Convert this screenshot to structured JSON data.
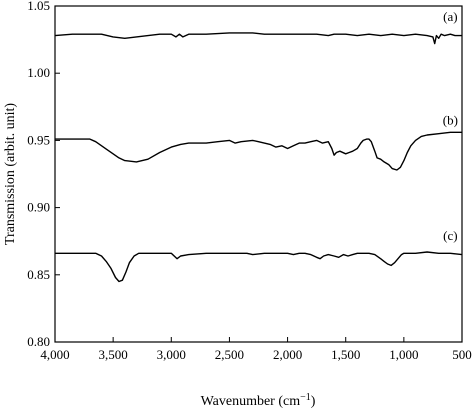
{
  "chart_data": {
    "type": "line",
    "xlabel_base": "Wavenumber (cm",
    "xlabel_sup": "−1",
    "xlabel_end": ")",
    "ylabel": "Transmission (arbit. unit)",
    "xlim": [
      4000,
      500
    ],
    "ylim": [
      0.8,
      1.05
    ],
    "x_ticks": [
      4000,
      3500,
      3000,
      2500,
      2000,
      1500,
      1000,
      500
    ],
    "x_tick_labels": [
      "4,000",
      "3,500",
      "3,000",
      "2,500",
      "2,000",
      "1,500",
      "1,000",
      "500"
    ],
    "y_ticks": [
      0.8,
      0.85,
      0.9,
      0.95,
      1.0,
      1.05
    ],
    "y_tick_labels": [
      "0.80",
      "0.85",
      "0.90",
      "0.95",
      "1.00",
      "1.05"
    ],
    "series": [
      {
        "label": "(a)",
        "label_at": [
          600,
          1.039
        ],
        "points": [
          [
            4000,
            1.028
          ],
          [
            3850,
            1.029
          ],
          [
            3700,
            1.029
          ],
          [
            3600,
            1.029
          ],
          [
            3500,
            1.027
          ],
          [
            3400,
            1.026
          ],
          [
            3300,
            1.027
          ],
          [
            3200,
            1.028
          ],
          [
            3100,
            1.029
          ],
          [
            3000,
            1.029
          ],
          [
            2960,
            1.027
          ],
          [
            2930,
            1.029
          ],
          [
            2900,
            1.027
          ],
          [
            2850,
            1.029
          ],
          [
            2700,
            1.029
          ],
          [
            2500,
            1.03
          ],
          [
            2300,
            1.03
          ],
          [
            2200,
            1.029
          ],
          [
            2100,
            1.029
          ],
          [
            2000,
            1.029
          ],
          [
            1900,
            1.029
          ],
          [
            1750,
            1.029
          ],
          [
            1650,
            1.028
          ],
          [
            1600,
            1.029
          ],
          [
            1500,
            1.029
          ],
          [
            1400,
            1.028
          ],
          [
            1300,
            1.029
          ],
          [
            1200,
            1.028
          ],
          [
            1100,
            1.029
          ],
          [
            1000,
            1.028
          ],
          [
            900,
            1.029
          ],
          [
            800,
            1.028
          ],
          [
            750,
            1.027
          ],
          [
            735,
            1.022
          ],
          [
            720,
            1.028
          ],
          [
            700,
            1.026
          ],
          [
            680,
            1.029
          ],
          [
            650,
            1.028
          ],
          [
            600,
            1.029
          ],
          [
            560,
            1.028
          ],
          [
            500,
            1.028
          ]
        ]
      },
      {
        "label": "(b)",
        "label_at": [
          600,
          0.962
        ],
        "points": [
          [
            4000,
            0.951
          ],
          [
            3800,
            0.951
          ],
          [
            3700,
            0.951
          ],
          [
            3650,
            0.949
          ],
          [
            3550,
            0.943
          ],
          [
            3450,
            0.937
          ],
          [
            3400,
            0.935
          ],
          [
            3300,
            0.934
          ],
          [
            3200,
            0.936
          ],
          [
            3100,
            0.941
          ],
          [
            3000,
            0.945
          ],
          [
            2920,
            0.947
          ],
          [
            2850,
            0.948
          ],
          [
            2700,
            0.948
          ],
          [
            2600,
            0.949
          ],
          [
            2500,
            0.95
          ],
          [
            2450,
            0.948
          ],
          [
            2400,
            0.949
          ],
          [
            2300,
            0.95
          ],
          [
            2250,
            0.949
          ],
          [
            2200,
            0.948
          ],
          [
            2150,
            0.947
          ],
          [
            2100,
            0.945
          ],
          [
            2050,
            0.946
          ],
          [
            2000,
            0.944
          ],
          [
            1950,
            0.946
          ],
          [
            1900,
            0.948
          ],
          [
            1850,
            0.948
          ],
          [
            1800,
            0.949
          ],
          [
            1750,
            0.95
          ],
          [
            1700,
            0.948
          ],
          [
            1650,
            0.949
          ],
          [
            1620,
            0.944
          ],
          [
            1600,
            0.939
          ],
          [
            1580,
            0.941
          ],
          [
            1550,
            0.942
          ],
          [
            1500,
            0.94
          ],
          [
            1470,
            0.941
          ],
          [
            1440,
            0.942
          ],
          [
            1400,
            0.944
          ],
          [
            1370,
            0.948
          ],
          [
            1350,
            0.95
          ],
          [
            1320,
            0.951
          ],
          [
            1300,
            0.951
          ],
          [
            1280,
            0.949
          ],
          [
            1250,
            0.942
          ],
          [
            1230,
            0.937
          ],
          [
            1200,
            0.936
          ],
          [
            1170,
            0.934
          ],
          [
            1130,
            0.932
          ],
          [
            1100,
            0.929
          ],
          [
            1060,
            0.928
          ],
          [
            1030,
            0.93
          ],
          [
            1000,
            0.935
          ],
          [
            970,
            0.941
          ],
          [
            940,
            0.946
          ],
          [
            900,
            0.95
          ],
          [
            850,
            0.953
          ],
          [
            800,
            0.954
          ],
          [
            700,
            0.955
          ],
          [
            600,
            0.956
          ],
          [
            500,
            0.956
          ]
        ]
      },
      {
        "label": "(c)",
        "label_at": [
          600,
          0.876
        ],
        "points": [
          [
            4000,
            0.866
          ],
          [
            3800,
            0.866
          ],
          [
            3700,
            0.866
          ],
          [
            3650,
            0.866
          ],
          [
            3600,
            0.864
          ],
          [
            3560,
            0.86
          ],
          [
            3520,
            0.855
          ],
          [
            3480,
            0.848
          ],
          [
            3450,
            0.845
          ],
          [
            3420,
            0.846
          ],
          [
            3390,
            0.852
          ],
          [
            3360,
            0.859
          ],
          [
            3320,
            0.864
          ],
          [
            3280,
            0.866
          ],
          [
            3200,
            0.866
          ],
          [
            3100,
            0.866
          ],
          [
            3000,
            0.866
          ],
          [
            2950,
            0.862
          ],
          [
            2920,
            0.864
          ],
          [
            2850,
            0.865
          ],
          [
            2700,
            0.866
          ],
          [
            2500,
            0.866
          ],
          [
            2350,
            0.866
          ],
          [
            2300,
            0.865
          ],
          [
            2200,
            0.866
          ],
          [
            2100,
            0.866
          ],
          [
            2000,
            0.866
          ],
          [
            1950,
            0.865
          ],
          [
            1900,
            0.866
          ],
          [
            1850,
            0.866
          ],
          [
            1800,
            0.865
          ],
          [
            1750,
            0.863
          ],
          [
            1720,
            0.862
          ],
          [
            1690,
            0.864
          ],
          [
            1650,
            0.865
          ],
          [
            1600,
            0.864
          ],
          [
            1560,
            0.863
          ],
          [
            1520,
            0.865
          ],
          [
            1480,
            0.864
          ],
          [
            1440,
            0.865
          ],
          [
            1400,
            0.866
          ],
          [
            1350,
            0.866
          ],
          [
            1300,
            0.866
          ],
          [
            1250,
            0.865
          ],
          [
            1200,
            0.862
          ],
          [
            1170,
            0.86
          ],
          [
            1140,
            0.858
          ],
          [
            1110,
            0.857
          ],
          [
            1080,
            0.859
          ],
          [
            1050,
            0.862
          ],
          [
            1020,
            0.865
          ],
          [
            1000,
            0.866
          ],
          [
            900,
            0.866
          ],
          [
            800,
            0.867
          ],
          [
            700,
            0.866
          ],
          [
            600,
            0.866
          ],
          [
            500,
            0.865
          ]
        ]
      }
    ]
  }
}
